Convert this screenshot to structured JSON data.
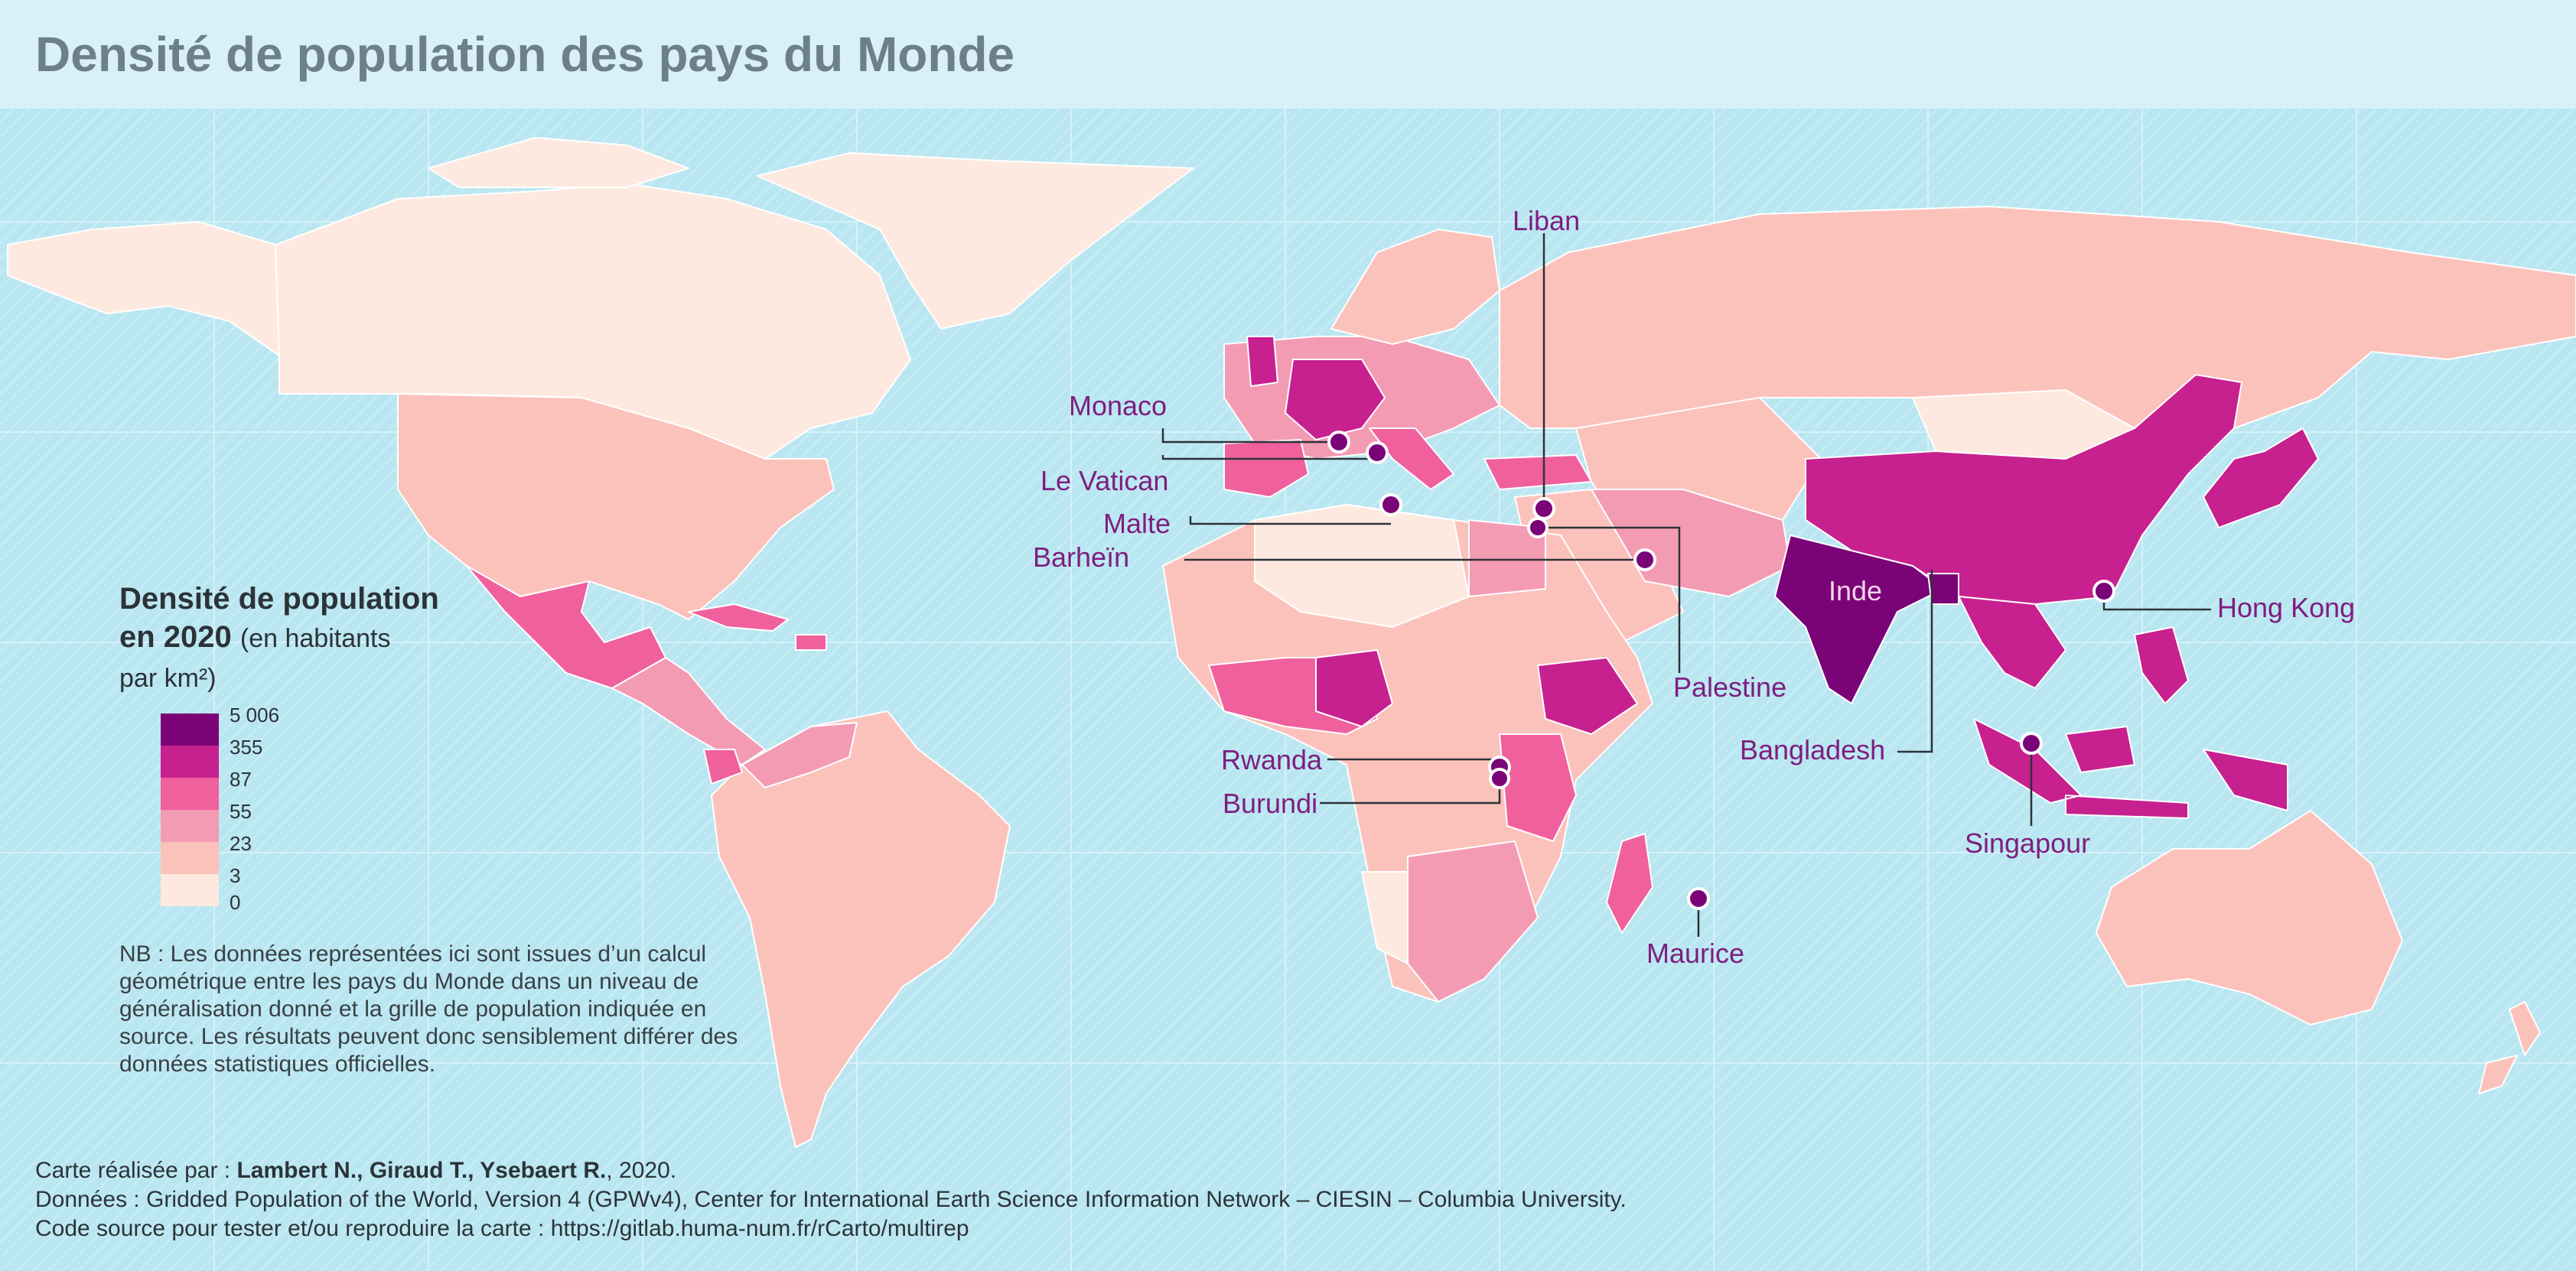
{
  "title": "Densité de population des pays du Monde",
  "legend": {
    "title_bold_1": "Densité de population",
    "title_bold_2": "en 2020",
    "title_sub_1": "(en habitants",
    "title_sub_2": "par km²)",
    "classes": [
      {
        "color": "#7a0377",
        "upper": "5 006",
        "lower": "355"
      },
      {
        "color": "#c7208f",
        "upper": "355",
        "lower": "87"
      },
      {
        "color": "#f0609c",
        "upper": "87",
        "lower": "55"
      },
      {
        "color": "#f49bb4",
        "upper": "55",
        "lower": "23"
      },
      {
        "color": "#fbc2bb",
        "upper": "23",
        "lower": "3"
      },
      {
        "color": "#fde9df",
        "upper": "3",
        "lower": "0"
      }
    ],
    "break_labels": [
      "5 006",
      "355",
      "87",
      "55",
      "23",
      "3",
      "0"
    ]
  },
  "note": "NB : Les données représentées ici sont issues d’un calcul géométrique entre les pays du Monde dans un niveau de généralisation donné et la grille de population indiquée en source. Les résultats peuvent donc sensiblement différer des données statistiques officielles.",
  "credits": {
    "line1_prefix": "Carte réalisée par : ",
    "line1_authors": "Lambert N., Giraud T., Ysebaert R.",
    "line1_suffix": ", 2020.",
    "line2": "Données : Gridded Population of the World, Version 4 (GPWv4), Center for International Earth Science Information Network – CIESIN – Columbia University.",
    "line3": "Code source pour tester et/ou reproduire la carte : https://gitlab.huma-num.fr/rCarto/multirep"
  },
  "labels": {
    "liban": "Liban",
    "monaco": "Monaco",
    "vatican": "Le Vatican",
    "malte": "Malte",
    "barhein": "Barheïn",
    "palestine": "Palestine",
    "hongkong": "Hong Kong",
    "inde": "Inde",
    "bangladesh": "Bangladesh",
    "singapour": "Singapour",
    "rwanda": "Rwanda",
    "burundi": "Burundi",
    "maurice": "Maurice"
  },
  "colors": {
    "ocean": "#b9e6f1",
    "class_1": "#7a0377",
    "class_2": "#c7208f",
    "class_3": "#f0609c",
    "class_4": "#f49bb4",
    "class_5": "#fbc2bb",
    "class_6": "#fde9df",
    "label": "#7e1e80"
  }
}
